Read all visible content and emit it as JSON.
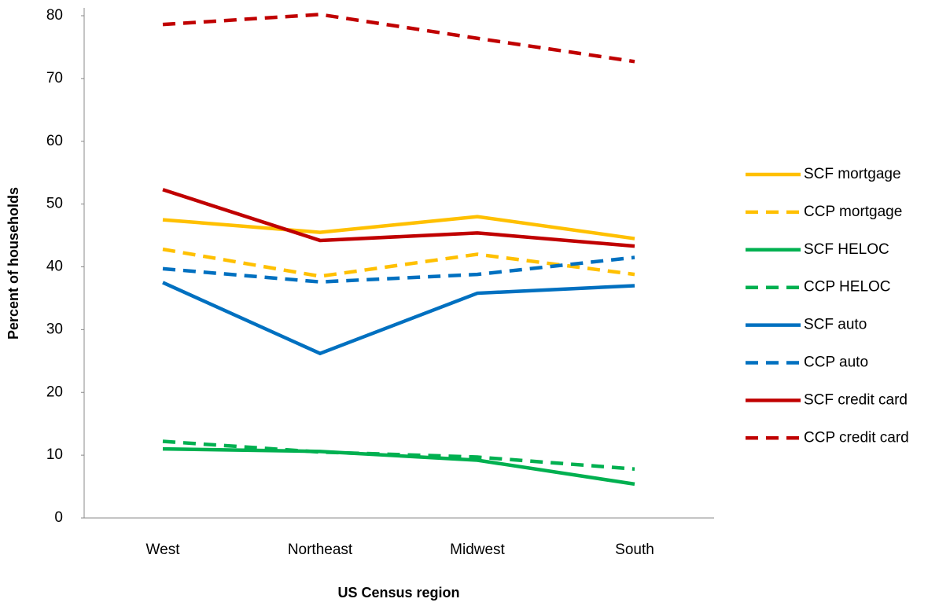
{
  "chart_data": {
    "type": "line",
    "x_label": "US Census region",
    "y_label": "Percent of households",
    "categories": [
      "West",
      "Northeast",
      "Midwest",
      "South"
    ],
    "ylim": [
      0,
      80
    ],
    "yticks": [
      0,
      10,
      20,
      30,
      40,
      50,
      60,
      70,
      80
    ],
    "legend": "right",
    "series": [
      {
        "name": "SCF mortgage",
        "color": "#ffc000",
        "dashed": false,
        "values": [
          47.5,
          45.5,
          48,
          44.5
        ]
      },
      {
        "name": "CCP mortgage",
        "color": "#ffc000",
        "dashed": true,
        "values": [
          42.8,
          38.5,
          42,
          38.8
        ]
      },
      {
        "name": "SCF HELOC",
        "color": "#00b050",
        "dashed": false,
        "values": [
          11,
          10.6,
          9.2,
          5.4
        ]
      },
      {
        "name": "CCP HELOC",
        "color": "#00b050",
        "dashed": true,
        "values": [
          12.2,
          10.5,
          9.7,
          7.8
        ]
      },
      {
        "name": "SCF auto",
        "color": "#0070c0",
        "dashed": false,
        "values": [
          37.5,
          26.2,
          35.8,
          37
        ]
      },
      {
        "name": "CCP auto",
        "color": "#0070c0",
        "dashed": true,
        "values": [
          39.7,
          37.6,
          38.8,
          41.5
        ]
      },
      {
        "name": "SCF credit card",
        "color": "#c00000",
        "dashed": false,
        "values": [
          52.3,
          44.2,
          45.4,
          43.3
        ]
      },
      {
        "name": "CCP credit card",
        "color": "#c00000",
        "dashed": true,
        "values": [
          78.6,
          80.2,
          76.4,
          72.7
        ]
      }
    ]
  }
}
